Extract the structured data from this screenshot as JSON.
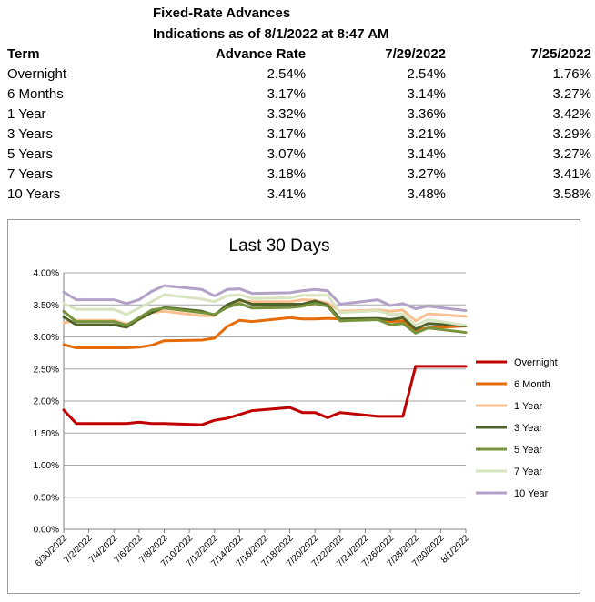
{
  "header": {
    "title": "Fixed-Rate Advances",
    "subtitle": "Indications as of 8/1/2022 at 8:47 AM"
  },
  "table": {
    "columns": [
      "Term",
      "Advance Rate",
      "7/29/2022",
      "7/25/2022"
    ],
    "rows": [
      [
        "Overnight",
        "2.54%",
        "2.54%",
        "1.76%"
      ],
      [
        "6 Months",
        "3.17%",
        "3.14%",
        "3.27%"
      ],
      [
        "1 Year",
        "3.32%",
        "3.36%",
        "3.42%"
      ],
      [
        "3 Years",
        "3.17%",
        "3.21%",
        "3.29%"
      ],
      [
        "5 Years",
        "3.07%",
        "3.14%",
        "3.27%"
      ],
      [
        "7 Years",
        "3.18%",
        "3.27%",
        "3.41%"
      ],
      [
        "10 Years",
        "3.41%",
        "3.48%",
        "3.58%"
      ]
    ]
  },
  "chart_data": {
    "type": "line",
    "title": "Last 30 Days",
    "xlabel": "",
    "ylabel": "",
    "ylim": [
      0,
      4.0
    ],
    "y_ticks": [
      "0.00%",
      "0.50%",
      "1.00%",
      "1.50%",
      "2.00%",
      "2.50%",
      "3.00%",
      "3.50%",
      "4.00%"
    ],
    "x_tick_labels": [
      "6/30/2022",
      "7/2/2022",
      "7/4/2022",
      "7/6/2022",
      "7/8/2022",
      "7/10/2022",
      "7/12/2022",
      "7/14/2022",
      "7/16/2022",
      "7/18/2022",
      "7/20/2022",
      "7/22/2022",
      "7/24/2022",
      "7/26/2022",
      "7/28/2022",
      "7/30/2022",
      "8/1/2022"
    ],
    "grid": true,
    "legend": "right",
    "x": [
      "6/30/2022",
      "7/1/2022",
      "7/4/2022",
      "7/5/2022",
      "7/6/2022",
      "7/7/2022",
      "7/8/2022",
      "7/11/2022",
      "7/12/2022",
      "7/13/2022",
      "7/14/2022",
      "7/15/2022",
      "7/18/2022",
      "7/19/2022",
      "7/20/2022",
      "7/21/2022",
      "7/22/2022",
      "7/25/2022",
      "7/26/2022",
      "7/27/2022",
      "7/28/2022",
      "7/29/2022",
      "8/1/2022"
    ],
    "series": [
      {
        "name": "Overnight",
        "color": "#c00000",
        "values": [
          1.86,
          1.65,
          1.65,
          1.65,
          1.67,
          1.65,
          1.65,
          1.63,
          1.7,
          1.73,
          1.79,
          1.85,
          1.9,
          1.82,
          1.82,
          1.74,
          1.82,
          1.76,
          1.76,
          1.76,
          2.54,
          2.54,
          2.54
        ]
      },
      {
        "name": "6 Month",
        "color": "#e46c0a",
        "values": [
          2.88,
          2.83,
          2.83,
          2.83,
          2.84,
          2.87,
          2.94,
          2.95,
          2.98,
          3.16,
          3.26,
          3.24,
          3.3,
          3.28,
          3.28,
          3.29,
          3.28,
          3.27,
          3.24,
          3.25,
          3.1,
          3.14,
          3.17
        ]
      },
      {
        "name": "1 Year",
        "color": "#fac090",
        "values": [
          3.22,
          3.26,
          3.26,
          3.2,
          3.27,
          3.38,
          3.4,
          3.33,
          3.33,
          3.5,
          3.56,
          3.55,
          3.55,
          3.58,
          3.57,
          3.53,
          3.4,
          3.42,
          3.4,
          3.42,
          3.25,
          3.36,
          3.32
        ]
      },
      {
        "name": "3 Year",
        "color": "#4f6228",
        "values": [
          3.31,
          3.19,
          3.19,
          3.15,
          3.28,
          3.38,
          3.46,
          3.4,
          3.34,
          3.5,
          3.58,
          3.51,
          3.51,
          3.51,
          3.56,
          3.5,
          3.28,
          3.29,
          3.27,
          3.3,
          3.12,
          3.21,
          3.17
        ]
      },
      {
        "name": "5 Year",
        "color": "#77933c",
        "values": [
          3.4,
          3.24,
          3.24,
          3.18,
          3.3,
          3.42,
          3.45,
          3.38,
          3.35,
          3.46,
          3.52,
          3.45,
          3.46,
          3.48,
          3.52,
          3.48,
          3.25,
          3.27,
          3.19,
          3.21,
          3.06,
          3.14,
          3.07
        ]
      },
      {
        "name": "7 Year",
        "color": "#d7e4bd",
        "values": [
          3.52,
          3.43,
          3.43,
          3.35,
          3.45,
          3.55,
          3.66,
          3.59,
          3.55,
          3.64,
          3.66,
          3.6,
          3.61,
          3.65,
          3.65,
          3.65,
          3.38,
          3.41,
          3.35,
          3.36,
          3.18,
          3.27,
          3.18
        ]
      },
      {
        "name": "10 Year",
        "color": "#b3a2c7",
        "values": [
          3.7,
          3.58,
          3.58,
          3.52,
          3.58,
          3.71,
          3.8,
          3.74,
          3.64,
          3.74,
          3.75,
          3.68,
          3.69,
          3.72,
          3.74,
          3.72,
          3.51,
          3.58,
          3.49,
          3.52,
          3.44,
          3.48,
          3.41
        ]
      }
    ]
  }
}
